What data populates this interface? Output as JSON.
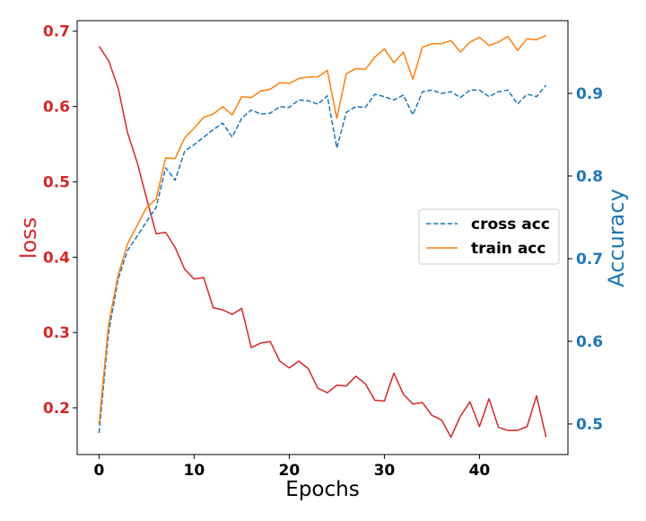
{
  "chart_data": {
    "type": "line",
    "xlabel": "Epochs",
    "x_ticks": [
      "0",
      "10",
      "20",
      "30",
      "40"
    ],
    "xlim": [
      -2.3,
      49.3
    ],
    "left_axis": {
      "label": "loss",
      "color": "#d62728",
      "ylim": [
        0.138,
        0.714
      ],
      "ticks": [
        "0.2",
        "0.3",
        "0.4",
        "0.5",
        "0.6",
        "0.7"
      ]
    },
    "right_axis": {
      "label": "Accuracy",
      "color": "#1f77b4",
      "ylim": [
        0.463,
        0.988
      ],
      "ticks": [
        "0.5",
        "0.6",
        "0.7",
        "0.8",
        "0.9"
      ]
    },
    "legend": {
      "position": "center-right",
      "entries": [
        {
          "label": "cross acc",
          "color": "#1f77b4",
          "style": "dashed"
        },
        {
          "label": "train acc",
          "color": "#ff7f0e",
          "style": "solid"
        }
      ]
    },
    "series": [
      {
        "name": "loss",
        "axis": "left",
        "color": "#d62728",
        "style": "solid",
        "x": [
          0,
          1,
          2,
          3,
          4,
          5,
          6,
          7,
          8,
          9,
          10,
          11,
          12,
          13,
          14,
          15,
          16,
          17,
          18,
          19,
          20,
          21,
          22,
          23,
          24,
          25,
          26,
          27,
          28,
          29,
          30,
          31,
          32,
          33,
          34,
          35,
          36,
          37,
          38,
          39,
          40,
          41,
          42,
          43,
          44,
          45,
          46,
          47
        ],
        "values": [
          0.68,
          0.661,
          0.625,
          0.565,
          0.526,
          0.478,
          0.431,
          0.433,
          0.413,
          0.384,
          0.371,
          0.373,
          0.333,
          0.33,
          0.324,
          0.332,
          0.28,
          0.286,
          0.288,
          0.262,
          0.253,
          0.262,
          0.252,
          0.226,
          0.22,
          0.23,
          0.229,
          0.242,
          0.232,
          0.21,
          0.209,
          0.246,
          0.218,
          0.205,
          0.207,
          0.19,
          0.184,
          0.161,
          0.189,
          0.208,
          0.175,
          0.212,
          0.174,
          0.17,
          0.17,
          0.175,
          0.216,
          0.161
        ]
      },
      {
        "name": "cross acc",
        "axis": "right",
        "color": "#1f77b4",
        "style": "dashed",
        "x": [
          0,
          1,
          2,
          3,
          4,
          5,
          6,
          7,
          8,
          9,
          10,
          11,
          12,
          13,
          14,
          15,
          16,
          17,
          18,
          19,
          20,
          21,
          22,
          23,
          24,
          25,
          26,
          27,
          28,
          29,
          30,
          31,
          32,
          33,
          34,
          35,
          36,
          37,
          38,
          39,
          40,
          41,
          42,
          43,
          44,
          45,
          46,
          47
        ],
        "values": [
          0.489,
          0.61,
          0.675,
          0.71,
          0.727,
          0.745,
          0.762,
          0.81,
          0.795,
          0.83,
          0.838,
          0.847,
          0.856,
          0.864,
          0.847,
          0.87,
          0.88,
          0.875,
          0.876,
          0.884,
          0.883,
          0.892,
          0.891,
          0.887,
          0.897,
          0.834,
          0.877,
          0.884,
          0.883,
          0.899,
          0.896,
          0.892,
          0.898,
          0.874,
          0.902,
          0.904,
          0.9,
          0.902,
          0.895,
          0.904,
          0.904,
          0.896,
          0.902,
          0.904,
          0.887,
          0.899,
          0.896,
          0.91
        ]
      },
      {
        "name": "train acc",
        "axis": "right",
        "color": "#ff7f0e",
        "style": "solid",
        "x": [
          0,
          1,
          2,
          3,
          4,
          5,
          6,
          7,
          8,
          9,
          10,
          11,
          12,
          13,
          14,
          15,
          16,
          17,
          18,
          19,
          20,
          21,
          22,
          23,
          24,
          25,
          26,
          27,
          28,
          29,
          30,
          31,
          32,
          33,
          34,
          35,
          36,
          37,
          38,
          39,
          40,
          41,
          42,
          43,
          44,
          45,
          46,
          47
        ],
        "values": [
          0.5,
          0.62,
          0.68,
          0.718,
          0.74,
          0.762,
          0.772,
          0.822,
          0.821,
          0.846,
          0.858,
          0.871,
          0.875,
          0.884,
          0.874,
          0.896,
          0.895,
          0.903,
          0.905,
          0.913,
          0.912,
          0.918,
          0.92,
          0.92,
          0.928,
          0.87,
          0.924,
          0.93,
          0.929,
          0.944,
          0.954,
          0.937,
          0.95,
          0.917,
          0.956,
          0.96,
          0.96,
          0.964,
          0.95,
          0.962,
          0.968,
          0.958,
          0.962,
          0.969,
          0.952,
          0.966,
          0.965,
          0.97
        ]
      }
    ]
  }
}
